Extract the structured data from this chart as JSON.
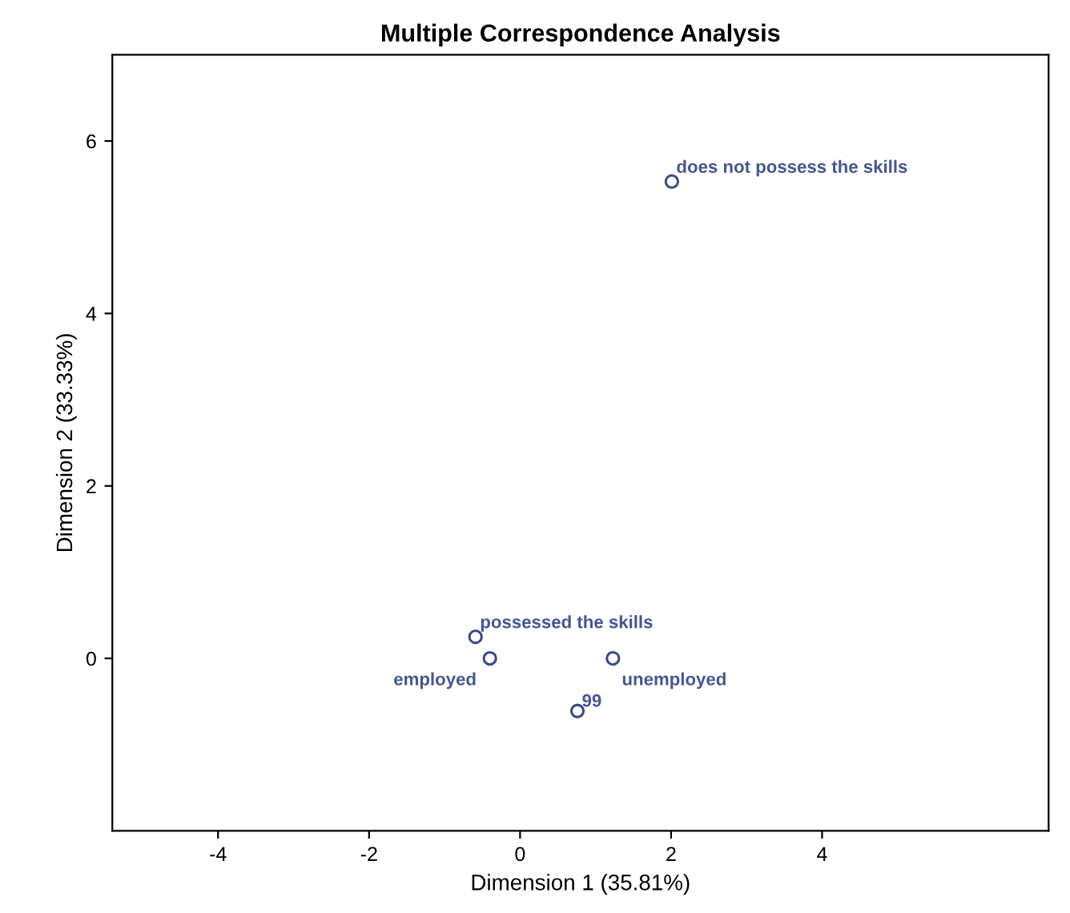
{
  "chart_data": {
    "type": "scatter",
    "title": "Multiple Correspondence Analysis",
    "xlabel": "Dimension 1 (35.81%)",
    "ylabel": "Dimension 2 (33.33%)",
    "x": [
      2.01,
      -0.59,
      -0.4,
      1.23,
      0.76
    ],
    "series": [
      {
        "color": "#3b4a8c",
        "values": [
          5.53,
          0.25,
          0.0,
          0.0,
          -0.61
        ]
      }
    ],
    "annotations": [
      {
        "text": "does not possess the skills",
        "x": 2.01,
        "y": 5.53
      },
      {
        "text": "possessed the skills",
        "x": -0.59,
        "y": 0.25
      },
      {
        "text": "employed",
        "x": -0.4,
        "y": 0.0
      },
      {
        "text": "unemployed",
        "x": 1.23,
        "y": 0.0
      },
      {
        "text": "99",
        "x": 0.76,
        "y": -0.61
      }
    ],
    "xlim": [
      -5.4,
      7.0
    ],
    "ylim": [
      -2.0,
      7.0
    ],
    "xticks": [
      -4,
      -2,
      0,
      2,
      4
    ],
    "yticks": [
      0,
      2,
      4,
      6
    ],
    "grid": false,
    "marker": "circle"
  }
}
